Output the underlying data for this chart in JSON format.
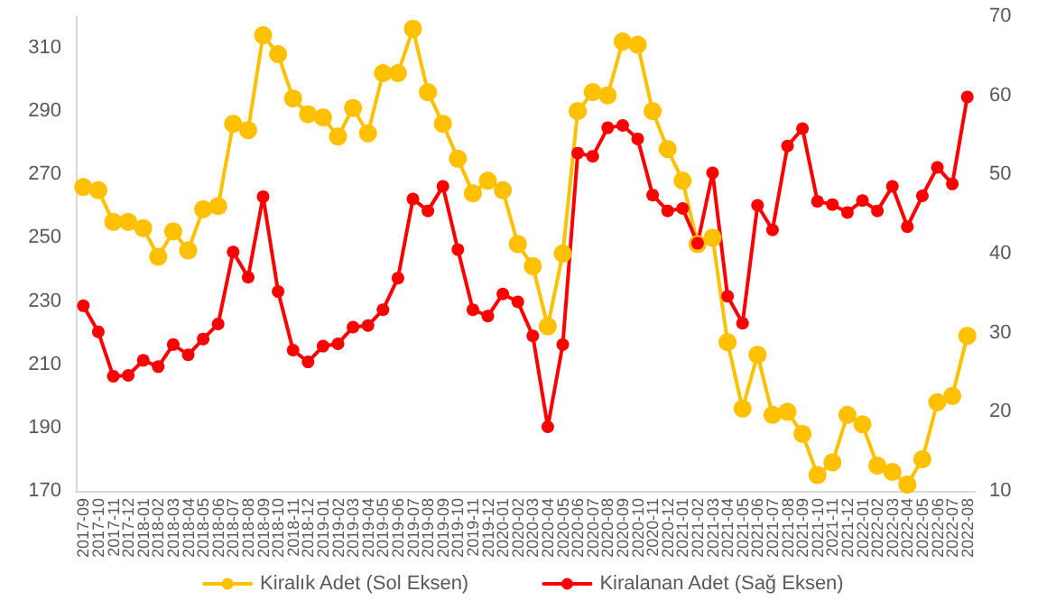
{
  "chart_data": {
    "type": "line",
    "categories": [
      "2017-09",
      "2017-10",
      "2017-11",
      "2017-12",
      "2018-01",
      "2018-02",
      "2018-03",
      "2018-04",
      "2018-05",
      "2018-06",
      "2018-07",
      "2018-08",
      "2018-09",
      "2018-10",
      "2018-11",
      "2018-12",
      "2019-01",
      "2019-02",
      "2019-03",
      "2019-04",
      "2019-05",
      "2019-06",
      "2019-07",
      "2019-08",
      "2019-09",
      "2019-10",
      "2019-11",
      "2019-12",
      "2020-01",
      "2020-02",
      "2020-03",
      "2020-04",
      "2020-05",
      "2020-06",
      "2020-07",
      "2020-08",
      "2020-09",
      "2020-10",
      "2020-11",
      "2020-12",
      "2021-01",
      "2021-02",
      "2021-03",
      "2021-04",
      "2021-05",
      "2021-06",
      "2021-07",
      "2021-08",
      "2021-09",
      "2021-10",
      "2021-11",
      "2021-12",
      "2022-01",
      "2022-02",
      "2022-03",
      "2022-04",
      "2022-05",
      "2022-06",
      "2022-07",
      "2022-08"
    ],
    "series": [
      {
        "name": "Kiralık Adet (Sol Eksen)",
        "color": "#ffc000",
        "values": [
          266,
          265,
          255,
          255,
          253,
          244,
          252,
          246,
          259,
          260,
          286,
          284,
          314,
          308,
          294,
          289,
          288,
          282,
          291,
          283,
          302,
          302,
          316,
          296,
          286,
          275,
          264,
          268,
          265,
          248,
          241,
          222,
          245,
          290,
          296,
          295,
          312,
          311,
          290,
          278,
          268,
          248,
          250,
          217,
          196,
          213,
          194,
          195,
          188,
          175,
          179,
          194,
          191,
          178,
          176,
          172,
          180,
          198,
          200,
          219
        ]
      },
      {
        "name": "Kiralanan Adet (Sağ Eksen)",
        "color": "#ff0000",
        "axis": "y2",
        "values": [
          33.4,
          30.1,
          24.5,
          24.6,
          26.5,
          25.7,
          28.5,
          27.2,
          29.2,
          31.1,
          40.2,
          37.0,
          47.2,
          35.2,
          27.8,
          26.3,
          28.3,
          28.6,
          30.7,
          30.9,
          32.9,
          36.9,
          46.9,
          45.4,
          48.5,
          40.5,
          32.9,
          32.1,
          34.9,
          33.9,
          29.6,
          18.1,
          28.5,
          52.7,
          52.3,
          55.9,
          56.2,
          54.5,
          47.4,
          45.4,
          45.7,
          41.3,
          50.2,
          34.6,
          31.2,
          46.1,
          43.0,
          53.6,
          55.8,
          46.6,
          46.2,
          45.2,
          46.7,
          45.4,
          48.5,
          43.4,
          47.3,
          50.9,
          48.8,
          59.8
        ]
      }
    ],
    "ylim": [
      170,
      320
    ],
    "yticks": [
      170,
      190,
      210,
      230,
      250,
      270,
      290,
      310
    ],
    "y2lim": [
      10,
      70
    ],
    "y2ticks": [
      10,
      20,
      30,
      40,
      50,
      60,
      70
    ],
    "legend": "bottom",
    "marker": "circle",
    "line_style": "solid",
    "grid": false
  }
}
